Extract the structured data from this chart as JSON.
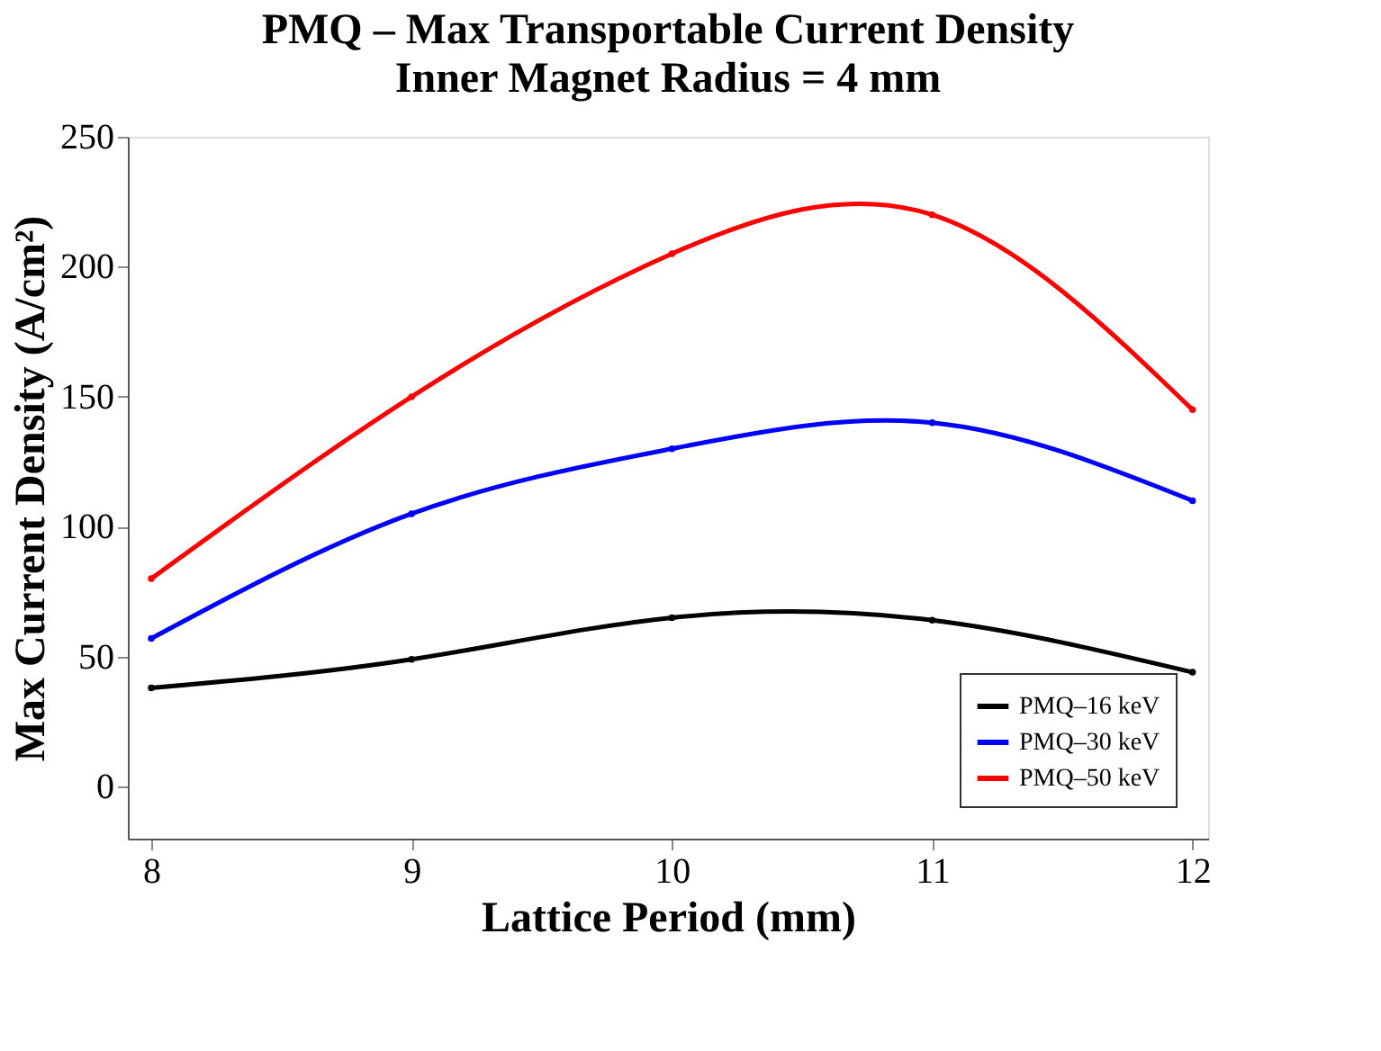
{
  "chart_data": {
    "type": "line",
    "title": "PMQ – Max Transportable Current Density",
    "subtitle": "Inner Magnet Radius = 4 mm",
    "xlabel": "Lattice Period (mm)",
    "ylabel": "Max Current Density (A/cm²)",
    "x": [
      8,
      9,
      10,
      11,
      12
    ],
    "series": [
      {
        "name": "PMQ–16 keV",
        "color": "#000000",
        "values": [
          38,
          49,
          65,
          64,
          44
        ]
      },
      {
        "name": "PMQ–30 keV",
        "color": "#0000ff",
        "values": [
          57,
          105,
          130,
          140,
          110
        ]
      },
      {
        "name": "PMQ–50 keV",
        "color": "#ff0000",
        "values": [
          80,
          150,
          205,
          220,
          145
        ]
      }
    ],
    "xlim": [
      7.91,
      12.06
    ],
    "xticks": [
      8,
      9,
      10,
      11,
      12
    ],
    "ylim": [
      -20,
      250
    ],
    "yticks": [
      0,
      50,
      100,
      150,
      200,
      250
    ],
    "grid": false,
    "legend": "bottom right",
    "marker": "circle",
    "line_style": "solid"
  }
}
